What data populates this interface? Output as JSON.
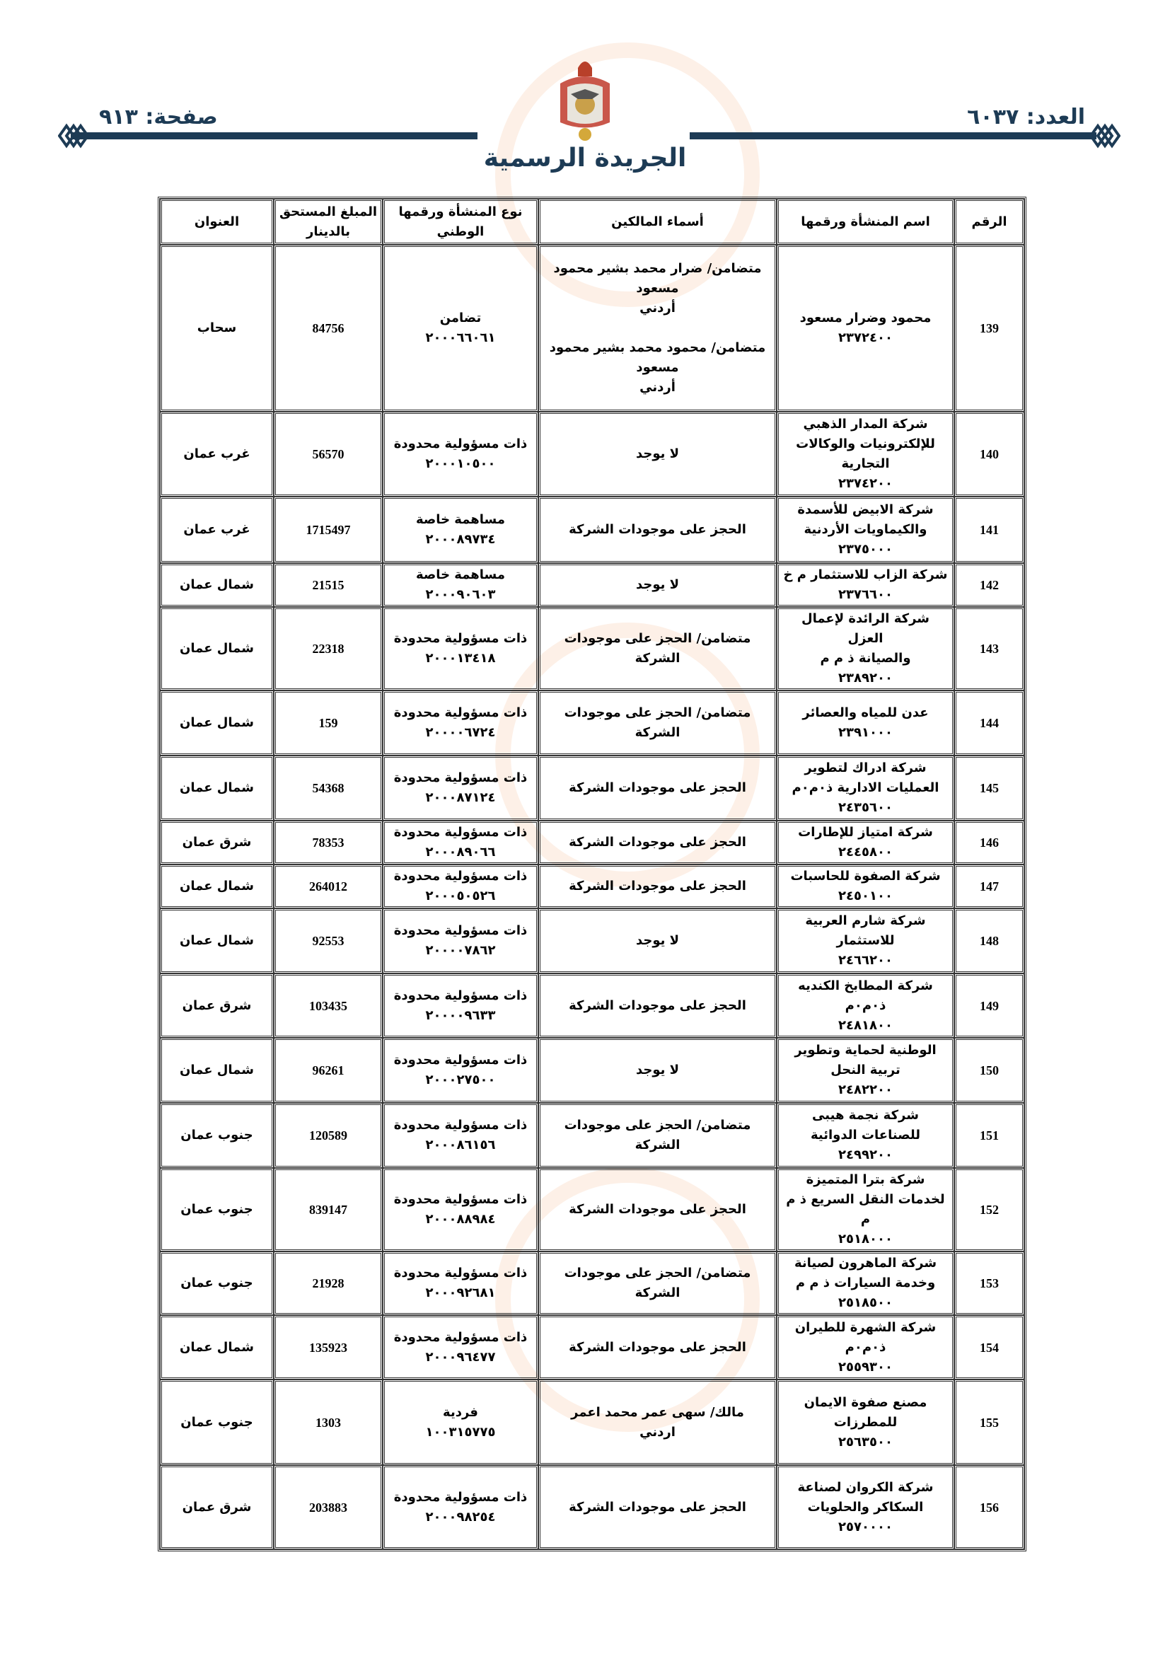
{
  "header": {
    "issue": "العدد: ٦٠٣٧",
    "page": "صفحة: ٩١٣",
    "title": "الجريدة الرسمية"
  },
  "colors": {
    "navy": "#1d3b55"
  },
  "table": {
    "columns": [
      "الرقم",
      "اسم المنشأة ورقمها",
      "أسماء المالكين",
      "نوع المنشأة ورقمها الوطني",
      "المبلغ المستحق بالدينار",
      "العنوان"
    ],
    "rows": [
      {
        "no": "139",
        "name": "محمود وضرار مسعود\n٢٣٧٢٤٠٠",
        "owners": "متضامن/ ضرار محمد بشير محمود\nمسعود\nأردني\n\nمتضامن/ محمود محمد بشير محمود\nمسعود\nأردني",
        "type": "تضامن\n٢٠٠٠٦٦٠٦١",
        "amount": "84756",
        "address": "سحاب"
      },
      {
        "no": "140",
        "name": "شركة المدار الذهبي\nللإلكترونيات والوكالات\nالتجارية\n٢٣٧٤٢٠٠",
        "owners": "لا يوجد",
        "type": "ذات مسؤولية محدودة\n٢٠٠٠١٠٥٠٠",
        "amount": "56570",
        "address": "غرب عمان"
      },
      {
        "no": "141",
        "name": "شركة الابيض للأسمدة\nوالكيماويات الأردنية\n٢٣٧٥٠٠٠",
        "owners": "الحجز على موجودات الشركة",
        "type": "مساهمة خاصة\n٢٠٠٠٨٩٧٣٤",
        "amount": "1715497",
        "address": "غرب عمان"
      },
      {
        "no": "142",
        "name": "شركة الزاب للاستثمار م خ\n٢٣٧٦٦٠٠",
        "owners": "لا يوجد",
        "type": "مساهمة خاصة\n٢٠٠٠٩٠٦٠٣",
        "amount": "21515",
        "address": "شمال عمان"
      },
      {
        "no": "143",
        "name": "شركة الرائدة لإعمال العزل\nوالصيانة ذ م م\n٢٣٨٩٢٠٠",
        "owners": "متضامن/ الحجز على موجودات\nالشركة",
        "type": "ذات مسؤولية محدودة\n٢٠٠٠١٣٤١٨",
        "amount": "22318",
        "address": "شمال عمان"
      },
      {
        "no": "144",
        "name": "عدن للمياه والعصائر\n٢٣٩١٠٠٠",
        "owners": "متضامن/ الحجز على موجودات\nالشركة",
        "type": "ذات مسؤولية محدودة\n٢٠٠٠٠٦٧٢٤",
        "amount": "159",
        "address": "شمال عمان"
      },
      {
        "no": "145",
        "name": "شركة ادراك لتطوير\nالعمليات الادارية ذ٠م٠م\n٢٤٣٥٦٠٠",
        "owners": "الحجز على موجودات الشركة",
        "type": "ذات مسؤولية محدودة\n٢٠٠٠٨٧١٢٤",
        "amount": "54368",
        "address": "شمال عمان"
      },
      {
        "no": "146",
        "name": "شركة امتياز للإطارات\n٢٤٤٥٨٠٠",
        "owners": "الحجز على موجودات الشركة",
        "type": "ذات مسؤولية محدودة\n٢٠٠٠٨٩٠٦٦",
        "amount": "78353",
        "address": "شرق عمان"
      },
      {
        "no": "147",
        "name": "شركة الصفوة للحاسبات\n٢٤٥٠١٠٠",
        "owners": "الحجز على موجودات الشركة",
        "type": "ذات مسؤولية محدودة\n٢٠٠٠٥٠٥٢٦",
        "amount": "264012",
        "address": "شمال عمان"
      },
      {
        "no": "148",
        "name": "شركة شارم العربية\nللاستثمار\n٢٤٦٦٢٠٠",
        "owners": "لا يوجد",
        "type": "ذات مسؤولية محدودة\n٢٠٠٠٠٧٨٦٢",
        "amount": "92553",
        "address": "شمال عمان"
      },
      {
        "no": "149",
        "name": "شركة المطابخ الكنديه\nذ٠م٠م\n٢٤٨١٨٠٠",
        "owners": "الحجز على موجودات الشركة",
        "type": "ذات مسؤولية محدودة\n٢٠٠٠٠٩٦٣٣",
        "amount": "103435",
        "address": "شرق عمان"
      },
      {
        "no": "150",
        "name": "الوطنية لحماية وتطوير\nتربية النحل\n٢٤٨٢٢٠٠",
        "owners": "لا يوجد",
        "type": "ذات مسؤولية محدودة\n٢٠٠٠٢٧٥٠٠",
        "amount": "96261",
        "address": "شمال عمان"
      },
      {
        "no": "151",
        "name": "شركة نجمة هيبى\nللصناعات الدوائية\n٢٤٩٩٢٠٠",
        "owners": "متضامن/ الحجز على موجودات\nالشركة",
        "type": "ذات مسؤولية محدودة\n٢٠٠٠٨٦١٥٦",
        "amount": "120589",
        "address": "جنوب عمان"
      },
      {
        "no": "152",
        "name": "شركة بترا المتميزة\nلخدمات النقل السريع ذ م م\n٢٥١٨٠٠٠",
        "owners": "الحجز على موجودات الشركة",
        "type": "ذات مسؤولية محدودة\n٢٠٠٠٨٨٩٨٤",
        "amount": "839147",
        "address": "جنوب عمان"
      },
      {
        "no": "153",
        "name": "شركة الماهرون لصيانة\nوخدمة السيارات ذ م م\n٢٥١٨٥٠٠",
        "owners": "متضامن/ الحجز على موجودات\nالشركة",
        "type": "ذات مسؤولية محدودة\n٢٠٠٠٩٢٦٨١",
        "amount": "21928",
        "address": "جنوب عمان"
      },
      {
        "no": "154",
        "name": "شركة الشهرة للطيران\nذ٠م٠م\n٢٥٥٩٣٠٠",
        "owners": "الحجز على موجودات الشركة",
        "type": "ذات مسؤولية محدودة\n٢٠٠٠٩٦٤٧٧",
        "amount": "135923",
        "address": "شمال عمان"
      },
      {
        "no": "155",
        "name": "مصنع صفوة الايمان\nللمطرزات\n٢٥٦٣٥٠٠",
        "owners": "مالك/ سهى عمر محمد اعمر\nاردني",
        "type": "فردية\n١٠٠٣١٥٧٧٥",
        "amount": "1303",
        "address": "جنوب عمان"
      },
      {
        "no": "156",
        "name": "شركة الكروان لصناعة\nالسكاكر والحلويات\n٢٥٧٠٠٠٠",
        "owners": "الحجز على موجودات الشركة",
        "type": "ذات مسؤولية محدودة\n٢٠٠٠٩٨٢٥٤",
        "amount": "203883",
        "address": "شرق عمان"
      }
    ]
  }
}
